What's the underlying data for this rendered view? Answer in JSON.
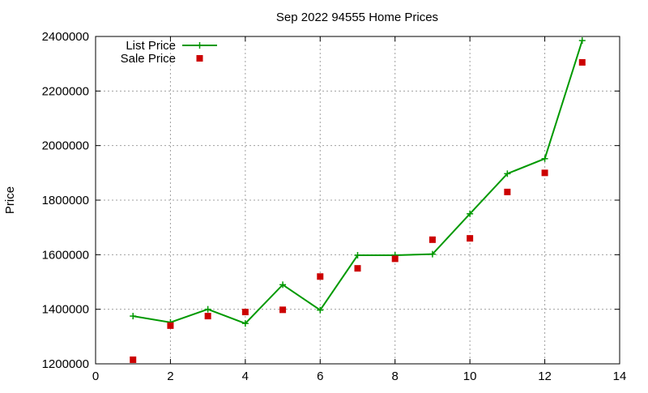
{
  "chart_data": {
    "type": "line",
    "title": "Sep 2022 94555 Home Prices",
    "xlabel": "",
    "ylabel": "Price",
    "xlim": [
      0,
      14
    ],
    "ylim": [
      1200000,
      2400000
    ],
    "xticks": [
      0,
      2,
      4,
      6,
      8,
      10,
      12,
      14
    ],
    "yticks": [
      1200000,
      1400000,
      1600000,
      1800000,
      2000000,
      2200000,
      2400000
    ],
    "grid": true,
    "legend_position": "top-left",
    "series": [
      {
        "name": "List Price",
        "style": "line-plus",
        "color": "#009900",
        "x": [
          1,
          2,
          3,
          4,
          5,
          6,
          7,
          8,
          9,
          10,
          11,
          12,
          13
        ],
        "y": [
          1375000,
          1352000,
          1400000,
          1348000,
          1490000,
          1397000,
          1598000,
          1598000,
          1602000,
          1750000,
          1897000,
          1952000,
          2385000
        ]
      },
      {
        "name": "Sale Price",
        "style": "square-points",
        "color": "#cc0000",
        "x": [
          1,
          2,
          3,
          4,
          5,
          6,
          7,
          8,
          9,
          10,
          11,
          12,
          13
        ],
        "y": [
          1215000,
          1340000,
          1375000,
          1390000,
          1398000,
          1520000,
          1550000,
          1585000,
          1655000,
          1660000,
          1830000,
          1900000,
          2305000
        ]
      }
    ]
  }
}
